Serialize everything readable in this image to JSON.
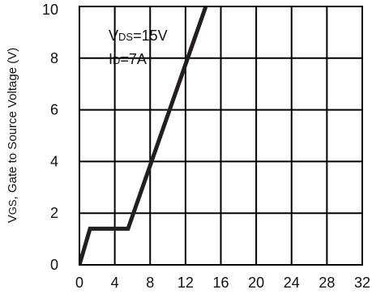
{
  "chart_data": {
    "type": "line",
    "title": "",
    "xlabel": "",
    "ylabel": "VGS, Gate to Source Voltage (V)",
    "ylabel_parts": {
      "main": "V",
      "sub": "GS",
      "rest": ", Gate to Source Voltage (V)"
    },
    "xlim": [
      0,
      32
    ],
    "ylim": [
      0,
      10
    ],
    "x_ticks": [
      "0",
      "4",
      "8",
      "12",
      "16",
      "20",
      "24",
      "28",
      "32"
    ],
    "y_ticks": [
      "0",
      "2",
      "4",
      "6",
      "8",
      "10"
    ],
    "grid": true,
    "annotations": [
      {
        "text": "VDS=15V",
        "main": "V",
        "sub": "DS",
        "rest": "=15V"
      },
      {
        "text": "ID=7A",
        "main": "I",
        "sub": "D",
        "rest": "=7A"
      }
    ],
    "series": [
      {
        "x": [
          0,
          1.2,
          5.5,
          14.5
        ],
        "y": [
          0,
          1.4,
          1.4,
          10.2
        ]
      }
    ],
    "colors": {
      "line": "#231f20",
      "grid": "#000000"
    }
  }
}
